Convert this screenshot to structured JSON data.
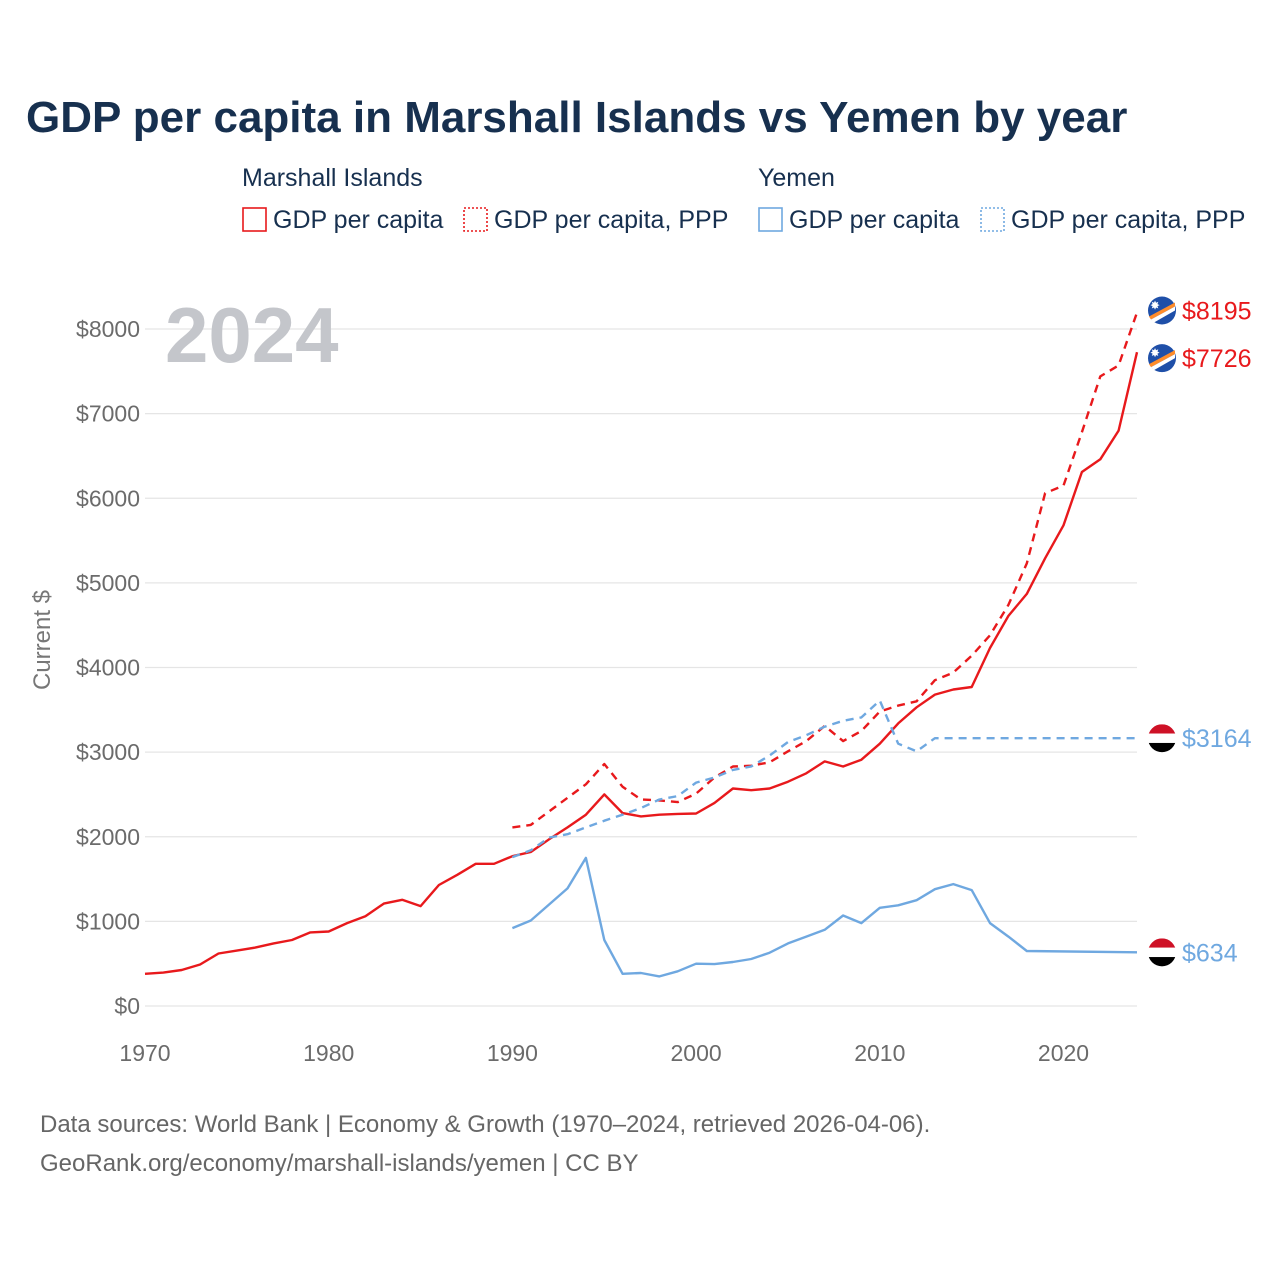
{
  "title": "GDP per capita in Marshall Islands vs Yemen by year",
  "year_watermark": "2024",
  "legend": {
    "groups": [
      {
        "name": "Marshall Islands",
        "items": [
          {
            "label": "GDP per capita",
            "style": "solid",
            "color": "#e8191c"
          },
          {
            "label": "GDP per capita, PPP",
            "style": "dashed",
            "color": "#e8191c"
          }
        ]
      },
      {
        "name": "Yemen",
        "items": [
          {
            "label": "GDP per capita",
            "style": "solid",
            "color": "#6fa8e0"
          },
          {
            "label": "GDP per capita, PPP",
            "style": "dashed",
            "color": "#6fa8e0"
          }
        ]
      }
    ]
  },
  "footer": {
    "line1": "Data sources: World Bank | Economy & Growth (1970–2024, retrieved 2026-04-06).",
    "line2": "GeoRank.org/economy/marshall-islands/yemen | CC BY"
  },
  "colors": {
    "mhl": "#e8191c",
    "yem": "#6fa8e0",
    "grid": "#e5e5e5",
    "title": "#17304f"
  },
  "chart_data": {
    "type": "line",
    "title": "GDP per capita in Marshall Islands vs Yemen by year",
    "xlabel": "",
    "ylabel": "Current $",
    "xlim": [
      1970,
      2024
    ],
    "ylim": [
      0,
      8000
    ],
    "xticks": [
      1970,
      1980,
      1990,
      2000,
      2010,
      2020
    ],
    "yticks": [
      0,
      1000,
      2000,
      3000,
      4000,
      5000,
      6000,
      7000,
      8000
    ],
    "ytick_labels": [
      "$0",
      "$1000",
      "$2000",
      "$3000",
      "$4000",
      "$5000",
      "$6000",
      "$7000",
      "$8000"
    ],
    "grid": true,
    "series": [
      {
        "name": "Marshall Islands GDP per capita",
        "country": "Marshall Islands",
        "color": "#e8191c",
        "dash": false,
        "end_label": "$7726",
        "x": [
          1970,
          1971,
          1972,
          1973,
          1974,
          1975,
          1976,
          1977,
          1978,
          1979,
          1980,
          1981,
          1982,
          1983,
          1984,
          1985,
          1986,
          1987,
          1988,
          1989,
          1990,
          1991,
          1992,
          1993,
          1994,
          1995,
          1996,
          1997,
          1998,
          1999,
          2000,
          2001,
          2002,
          2003,
          2004,
          2005,
          2006,
          2007,
          2008,
          2009,
          2010,
          2011,
          2012,
          2013,
          2014,
          2015,
          2016,
          2017,
          2018,
          2019,
          2020,
          2021,
          2022,
          2023,
          2024
        ],
        "y": [
          380,
          395,
          425,
          490,
          620,
          655,
          690,
          740,
          780,
          870,
          880,
          980,
          1060,
          1210,
          1255,
          1180,
          1430,
          1550,
          1680,
          1680,
          1770,
          1820,
          1970,
          2110,
          2260,
          2500,
          2280,
          2240,
          2260,
          2270,
          2275,
          2400,
          2570,
          2550,
          2570,
          2650,
          2750,
          2890,
          2830,
          2910,
          3100,
          3340,
          3530,
          3680,
          3740,
          3770,
          4230,
          4610,
          4870,
          5290,
          5680,
          6310,
          6460,
          6800,
          7726
        ]
      },
      {
        "name": "Marshall Islands GDP per capita, PPP",
        "country": "Marshall Islands",
        "color": "#e8191c",
        "dash": true,
        "end_label": "$8195",
        "x": [
          1990,
          1991,
          1992,
          1993,
          1994,
          1995,
          1996,
          1997,
          1998,
          1999,
          2000,
          2001,
          2002,
          2003,
          2004,
          2005,
          2006,
          2007,
          2008,
          2009,
          2010,
          2011,
          2012,
          2013,
          2014,
          2015,
          2016,
          2017,
          2018,
          2019,
          2020,
          2021,
          2022,
          2023,
          2024
        ],
        "y": [
          2110,
          2140,
          2300,
          2460,
          2620,
          2860,
          2590,
          2440,
          2430,
          2410,
          2510,
          2700,
          2830,
          2840,
          2880,
          3010,
          3130,
          3310,
          3130,
          3250,
          3480,
          3550,
          3600,
          3850,
          3940,
          4140,
          4380,
          4740,
          5230,
          6060,
          6150,
          6780,
          7440,
          7570,
          8195
        ]
      },
      {
        "name": "Yemen GDP per capita",
        "country": "Yemen",
        "color": "#6fa8e0",
        "dash": false,
        "end_label": "$634",
        "x": [
          1990,
          1991,
          1992,
          1993,
          1994,
          1995,
          1996,
          1997,
          1998,
          1999,
          2000,
          2001,
          2002,
          2003,
          2004,
          2005,
          2006,
          2007,
          2008,
          2009,
          2010,
          2011,
          2012,
          2013,
          2014,
          2015,
          2016,
          2017,
          2018,
          2024
        ],
        "y": [
          920,
          1010,
          1200,
          1390,
          1750,
          780,
          380,
          390,
          350,
          410,
          500,
          495,
          520,
          555,
          630,
          740,
          820,
          900,
          1070,
          980,
          1160,
          1190,
          1250,
          1380,
          1440,
          1370,
          980,
          820,
          650,
          634
        ]
      },
      {
        "name": "Yemen GDP per capita, PPP",
        "country": "Yemen",
        "color": "#6fa8e0",
        "dash": true,
        "end_label": "$3164",
        "x": [
          1990,
          1991,
          1992,
          1993,
          1994,
          1995,
          1996,
          1997,
          1998,
          1999,
          2000,
          2001,
          2002,
          2003,
          2004,
          2005,
          2006,
          2007,
          2008,
          2009,
          2010,
          2011,
          2012,
          2013,
          2024
        ],
        "y": [
          1760,
          1840,
          1990,
          2030,
          2110,
          2190,
          2260,
          2340,
          2440,
          2480,
          2640,
          2700,
          2790,
          2830,
          2960,
          3120,
          3200,
          3300,
          3370,
          3410,
          3610,
          3100,
          3010,
          3164,
          3164
        ]
      }
    ]
  }
}
